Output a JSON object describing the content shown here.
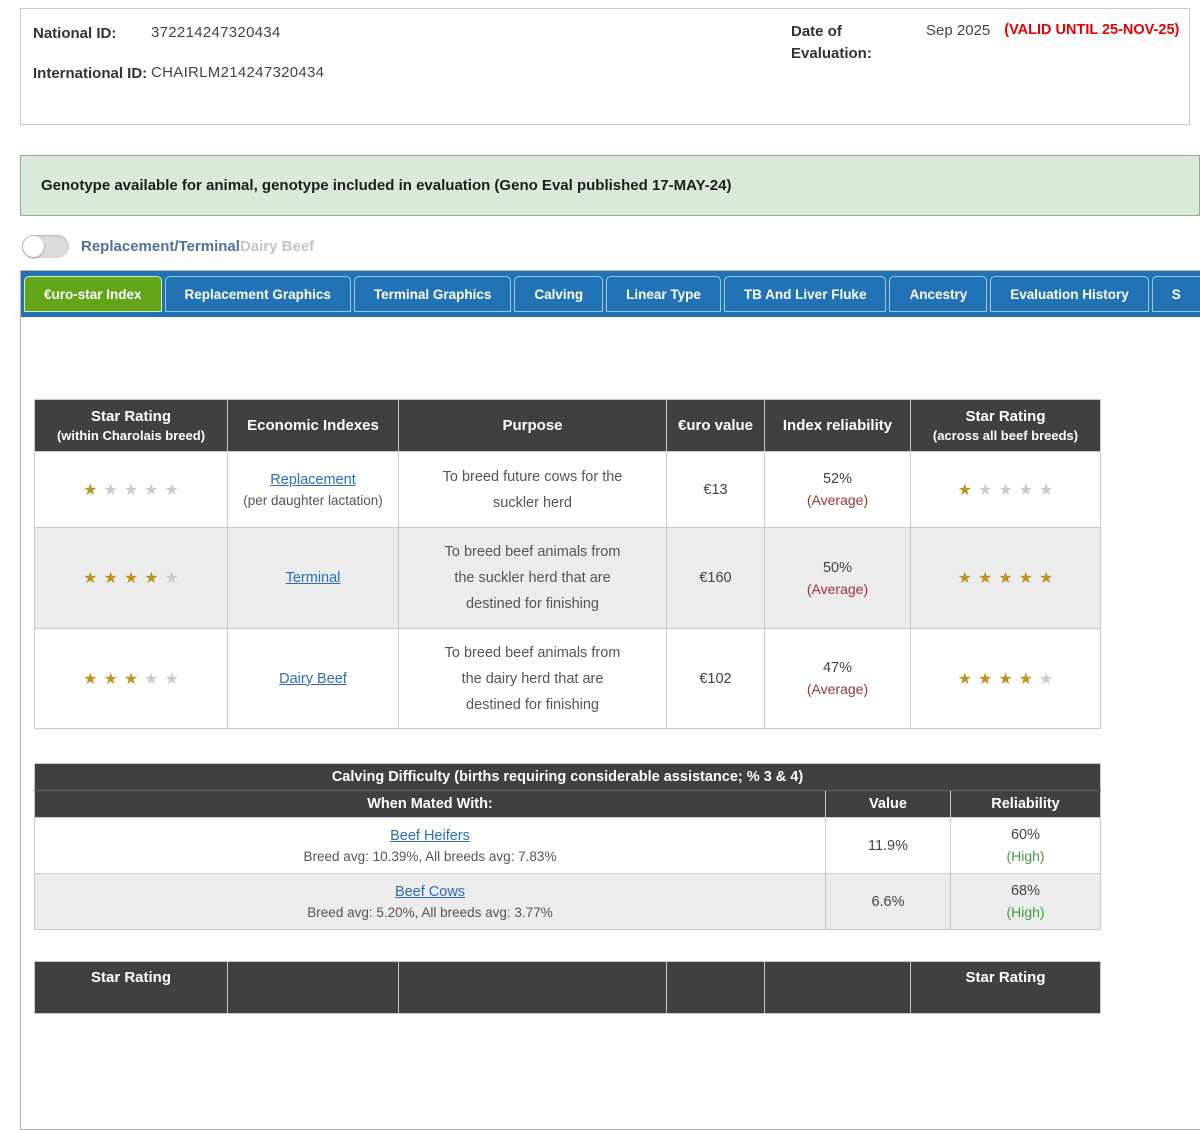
{
  "header": {
    "national_id_label": "National ID:",
    "national_id_value": "372214247320434",
    "international_id_label": "International ID:",
    "international_id_value": "CHAIRLM214247320434",
    "date_label": "Date of Evaluation:",
    "date_value": "Sep 2025",
    "valid_until": "(VALID UNTIL 25-NOV-25)"
  },
  "banner": {
    "text": "Genotype available for animal, genotype included in evaluation (Geno Eval published 17-MAY-24)"
  },
  "toggle": {
    "state": "off",
    "active_label": "Replacement/Terminal",
    "inactive_label": "Dairy Beef"
  },
  "tabs": [
    {
      "id": "euro-star-index",
      "label": "€uro-star Index",
      "active": true
    },
    {
      "id": "replacement-graphics",
      "label": "Replacement Graphics",
      "active": false
    },
    {
      "id": "terminal-graphics",
      "label": "Terminal Graphics",
      "active": false
    },
    {
      "id": "calving",
      "label": "Calving",
      "active": false
    },
    {
      "id": "linear-type",
      "label": "Linear Type",
      "active": false
    },
    {
      "id": "tb-and-liver-fluke",
      "label": "TB And Liver Fluke",
      "active": false
    },
    {
      "id": "ancestry",
      "label": "Ancestry",
      "active": false
    },
    {
      "id": "evaluation-history",
      "label": "Evaluation History",
      "active": false
    },
    {
      "id": "next-clipped",
      "label": "S",
      "active": false,
      "clipped": true
    }
  ],
  "index_table": {
    "headers": {
      "col1_line1": "Star Rating",
      "col1_line2": "(within Charolais breed)",
      "col2": "Economic Indexes",
      "col3": "Purpose",
      "col4": "€uro value",
      "col5": "Index reliability",
      "col6_line1": "Star Rating",
      "col6_line2": "(across all beef breeds)"
    },
    "rows": [
      {
        "stars_within": 1,
        "index_name": "Replacement",
        "index_sub": "(per daughter lactation)",
        "purpose": "To breed future cows for the suckler herd",
        "euro_value": "€13",
        "reliability": "52%",
        "reliability_note": "(Average)",
        "stars_across": 1
      },
      {
        "stars_within": 4,
        "index_name": "Terminal",
        "index_sub": "",
        "purpose": "To breed beef animals from the suckler herd that are destined for finishing",
        "euro_value": "€160",
        "reliability": "50%",
        "reliability_note": "(Average)",
        "stars_across": 5
      },
      {
        "stars_within": 3,
        "index_name": "Dairy Beef",
        "index_sub": "",
        "purpose": "To breed beef animals from the dairy herd that are destined for finishing",
        "euro_value": "€102",
        "reliability": "47%",
        "reliability_note": "(Average)",
        "stars_across": 4
      }
    ]
  },
  "calving_table": {
    "title": "Calving Difficulty (births requiring considerable assistance; % 3 & 4)",
    "col1_header": "When Mated With:",
    "col2_header": "Value",
    "col3_header": "Reliability",
    "rows": [
      {
        "link": "Beef Heifers",
        "sub": "Breed avg: 10.39%, All breeds avg: 7.83%",
        "value": "11.9%",
        "reliability": "60%",
        "reliability_note": "(High)"
      },
      {
        "link": "Beef Cows",
        "sub": "Breed avg: 5.20%, All breeds avg: 3.77%",
        "value": "6.6%",
        "reliability": "68%",
        "reliability_note": "(High)"
      }
    ]
  },
  "next_table": {
    "col1": "Star Rating",
    "col2": "",
    "col3": "",
    "col4": "",
    "col5": "",
    "col6": "Star Rating"
  },
  "colors": {
    "accent_blue": "#2173b6",
    "active_tab_green": "#62a519",
    "star_gold": "#bd9420",
    "star_gray": "#cbcbcb",
    "valid_red": "#e60000",
    "high_green": "#3f9c3f",
    "average_maroon": "#9c3434",
    "header_dark": "#404040",
    "banner_bg": "#dbe9db",
    "banner_border": "#8cb48c",
    "link_blue": "#2a6db8"
  }
}
